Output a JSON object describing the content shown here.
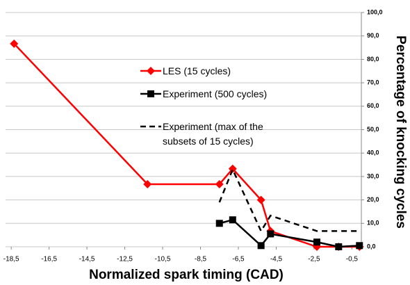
{
  "chart_data": {
    "type": "line",
    "x_label": "Normalized spark timing (CAD)",
    "y_label": "Percentage of knocking cycles",
    "x": [
      -18.35,
      -11.3,
      -7.5,
      -6.8,
      -5.3,
      -4.8,
      -2.35,
      -1.2,
      -0.1
    ],
    "series": [
      {
        "name": "LES (15 cycles)",
        "color": "#ff0000",
        "style": "solid",
        "marker": "diamond",
        "values": [
          86.7,
          26.7,
          26.7,
          33.3,
          20,
          6.7,
          0,
          0,
          0
        ]
      },
      {
        "name": "Experiment (500 cycles)",
        "color": "#000000",
        "style": "solid",
        "marker": "square",
        "values": [
          null,
          null,
          10,
          11.5,
          0.5,
          5.5,
          2,
          0,
          0.5
        ]
      },
      {
        "name": "Experiment (max of the subsets of 15 cycles)",
        "color": "#000000",
        "style": "dashed",
        "marker": "none",
        "values": [
          null,
          null,
          19,
          33,
          6.7,
          13.3,
          6.7,
          6.7,
          6.7
        ]
      }
    ],
    "xlim": [
      -18.8,
      0
    ],
    "xticks": [
      {
        "value": -18.5,
        "label": "-18,5"
      },
      {
        "value": -16.5,
        "label": "-16,5"
      },
      {
        "value": -14.5,
        "label": "-14,5"
      },
      {
        "value": -12.5,
        "label": "-12,5"
      },
      {
        "value": -10.5,
        "label": "-10,5"
      },
      {
        "value": -8.5,
        "label": "-8,5"
      },
      {
        "value": -6.5,
        "label": "-6,5"
      },
      {
        "value": -4.5,
        "label": "-4,5"
      },
      {
        "value": -2.5,
        "label": "-2,5"
      },
      {
        "value": -0.5,
        "label": "-0,5"
      }
    ],
    "ylim": [
      0,
      100
    ],
    "yticks": [
      {
        "value": 0,
        "label": "0,0"
      },
      {
        "value": 10,
        "label": "10,0"
      },
      {
        "value": 20,
        "label": "20,0"
      },
      {
        "value": 30,
        "label": "30,0"
      },
      {
        "value": 40,
        "label": "40,0"
      },
      {
        "value": 50,
        "label": "50,0"
      },
      {
        "value": 60,
        "label": "60,0"
      },
      {
        "value": 70,
        "label": "70,0"
      },
      {
        "value": 80,
        "label": "80,0"
      },
      {
        "value": 90,
        "label": "90,0"
      },
      {
        "value": 100,
        "label": "100,0"
      }
    ],
    "grid": true
  }
}
